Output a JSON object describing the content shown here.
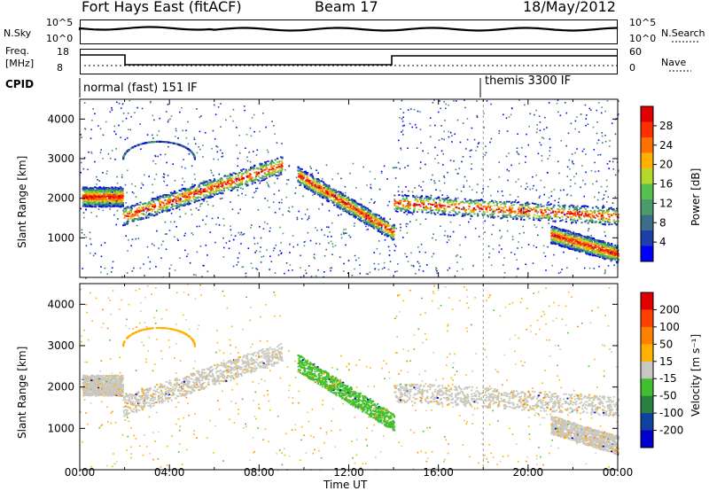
{
  "header": {
    "title": "Fort Hays East (fitACF)",
    "beam": "Beam 17",
    "date": "18/May/2012"
  },
  "status_rows": {
    "nsky_label": "N.Sky",
    "nsky_ticks": [
      "10^5",
      "10^0"
    ],
    "nsearch_label": "N.Search",
    "nsearch_ticks": [
      "10^5",
      "10^0"
    ],
    "freq_label_1": "Freq.",
    "freq_label_2": "[MHz]",
    "freq_ticks": [
      "18",
      "8"
    ],
    "nave_label": "Nave",
    "nave_ticks": [
      "60",
      "0"
    ],
    "cpid_label": "CPID",
    "cpid_mode_1": "normal (fast) 151 IF",
    "cpid_mode_2": "themis 3300 IF",
    "colors": {
      "line": "#000000"
    }
  },
  "chart_data": [
    {
      "type": "heatmap",
      "name": "power",
      "ylabel": "Slant Range [km]",
      "xlabel": "",
      "ylim": [
        0,
        4500
      ],
      "yticks": [
        "1000",
        "2000",
        "3000",
        "4000"
      ],
      "xlim_hours": [
        0,
        24
      ],
      "colorbar_label": "Power [dB]",
      "colorbar_ticks": [
        "28",
        "24",
        "20",
        "16",
        "12",
        "8",
        "4"
      ],
      "colors": [
        "#0000ff",
        "#1f3fa8",
        "#3c6e8c",
        "#4a9a6a",
        "#58c050",
        "#b4d82c",
        "#ffb000",
        "#ff7000",
        "#ff3000",
        "#e00000"
      ],
      "bands": [
        {
          "t": [
            0.0,
            1.9
          ],
          "r0": 1950,
          "r1": 2350
        },
        {
          "t": [
            1.9,
            9.0
          ],
          "r0": 1500,
          "r1": 3000
        },
        {
          "t": [
            9.7,
            14.0
          ],
          "r0": 2600,
          "r1": 1100
        },
        {
          "t": [
            14.0,
            24.0
          ],
          "r0": 1800,
          "r1": 1500
        },
        {
          "t": [
            21.0,
            24.0
          ],
          "r0": 1200,
          "r1": 500
        }
      ]
    },
    {
      "type": "heatmap",
      "name": "velocity",
      "ylabel": "Slant Range [km]",
      "xlabel": "Time UT",
      "ylim": [
        0,
        4500
      ],
      "yticks": [
        "1000",
        "2000",
        "3000",
        "4000"
      ],
      "xticks": [
        "00:00",
        "04:00",
        "08:00",
        "12:00",
        "16:00",
        "20:00",
        "00:00"
      ],
      "colorbar_label": "Velocity [m s⁻¹]",
      "colorbar_ticks": [
        "200",
        "100",
        "50",
        "15",
        "-15",
        "-50",
        "-100",
        "-200"
      ],
      "colors": [
        "#0000cc",
        "#1040a0",
        "#2a8040",
        "#40c030",
        "#c8c8c0",
        "#ffb000",
        "#ff8000",
        "#ff4000",
        "#e00000"
      ],
      "dominant": "#c8c8c0"
    }
  ]
}
